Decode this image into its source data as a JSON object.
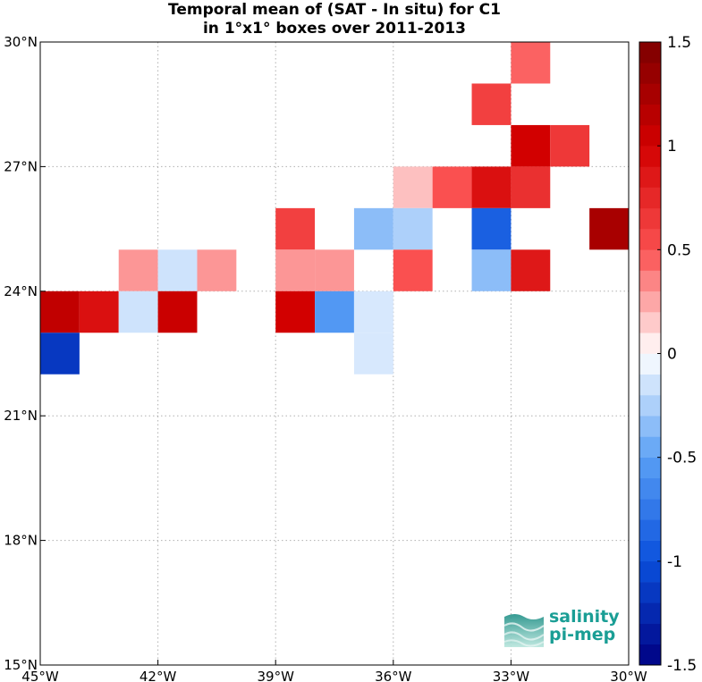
{
  "title": {
    "line1": "Temporal mean of (SAT - In situ) for C1",
    "line2": "in 1°x1° boxes over 2011-2013"
  },
  "map": {
    "lon_range": [
      -45,
      -30
    ],
    "lat_range": [
      15,
      30
    ],
    "x_ticks": [
      {
        "value": -45,
        "label": "45°W"
      },
      {
        "value": -42,
        "label": "42°W"
      },
      {
        "value": -39,
        "label": "39°W"
      },
      {
        "value": -36,
        "label": "36°W"
      },
      {
        "value": -33,
        "label": "33°W"
      },
      {
        "value": -30,
        "label": "30°W"
      }
    ],
    "y_ticks": [
      {
        "value": 30,
        "label": "30°N"
      },
      {
        "value": 27,
        "label": "27°N"
      },
      {
        "value": 24,
        "label": "24°N"
      },
      {
        "value": 21,
        "label": "21°N"
      },
      {
        "value": 18,
        "label": "18°N"
      },
      {
        "value": 15,
        "label": "15°N"
      }
    ],
    "grid": true
  },
  "chart_data": {
    "type": "heatmap",
    "title": "Temporal mean of (SAT - In situ) for C1 in 1°x1° boxes over 2011-2013",
    "cell_size_deg": 1,
    "cells": [
      {
        "lon": -33,
        "lat": 29,
        "value": 0.45
      },
      {
        "lon": -34,
        "lat": 28,
        "value": 0.6
      },
      {
        "lon": -33,
        "lat": 27,
        "value": 1.0
      },
      {
        "lon": -32,
        "lat": 27,
        "value": 0.65
      },
      {
        "lon": -36,
        "lat": 26,
        "value": 0.18
      },
      {
        "lon": -35,
        "lat": 26,
        "value": 0.5
      },
      {
        "lon": -34,
        "lat": 26,
        "value": 0.9
      },
      {
        "lon": -33,
        "lat": 26,
        "value": 0.7
      },
      {
        "lon": -39,
        "lat": 25,
        "value": 0.6
      },
      {
        "lon": -37,
        "lat": 25,
        "value": -0.35
      },
      {
        "lon": -36,
        "lat": 25,
        "value": -0.25
      },
      {
        "lon": -34,
        "lat": 25,
        "value": -0.9
      },
      {
        "lon": -31,
        "lat": 25,
        "value": 1.25
      },
      {
        "lon": -43,
        "lat": 24,
        "value": 0.3
      },
      {
        "lon": -42,
        "lat": 24,
        "value": -0.15
      },
      {
        "lon": -41,
        "lat": 24,
        "value": 0.3
      },
      {
        "lon": -39,
        "lat": 24,
        "value": 0.3
      },
      {
        "lon": -38,
        "lat": 24,
        "value": 0.3
      },
      {
        "lon": -36,
        "lat": 24,
        "value": 0.5
      },
      {
        "lon": -34,
        "lat": 24,
        "value": -0.35
      },
      {
        "lon": -33,
        "lat": 24,
        "value": 0.85
      },
      {
        "lon": -45,
        "lat": 23,
        "value": 1.1
      },
      {
        "lon": -44,
        "lat": 23,
        "value": 0.9
      },
      {
        "lon": -43,
        "lat": 23,
        "value": -0.15
      },
      {
        "lon": -42,
        "lat": 23,
        "value": 1.05
      },
      {
        "lon": -39,
        "lat": 23,
        "value": 1.0
      },
      {
        "lon": -38,
        "lat": 23,
        "value": -0.55
      },
      {
        "lon": -37,
        "lat": 23,
        "value": -0.12
      },
      {
        "lon": -45,
        "lat": 22,
        "value": -1.15
      },
      {
        "lon": -37,
        "lat": 22,
        "value": -0.12
      }
    ],
    "colorbar": {
      "range": [
        -1.5,
        1.5
      ],
      "levels": 30,
      "ticks": [
        {
          "value": 1.5,
          "label": "1.5"
        },
        {
          "value": 1,
          "label": "1"
        },
        {
          "value": 0.5,
          "label": "0.5"
        },
        {
          "value": 0,
          "label": "0"
        },
        {
          "value": -0.5,
          "label": "-0.5"
        },
        {
          "value": -1,
          "label": "-1"
        },
        {
          "value": -1.5,
          "label": "-1.5"
        }
      ]
    }
  },
  "logo": {
    "line1": "salinity",
    "line2": "pi-mep",
    "color": "#1a9e95"
  }
}
